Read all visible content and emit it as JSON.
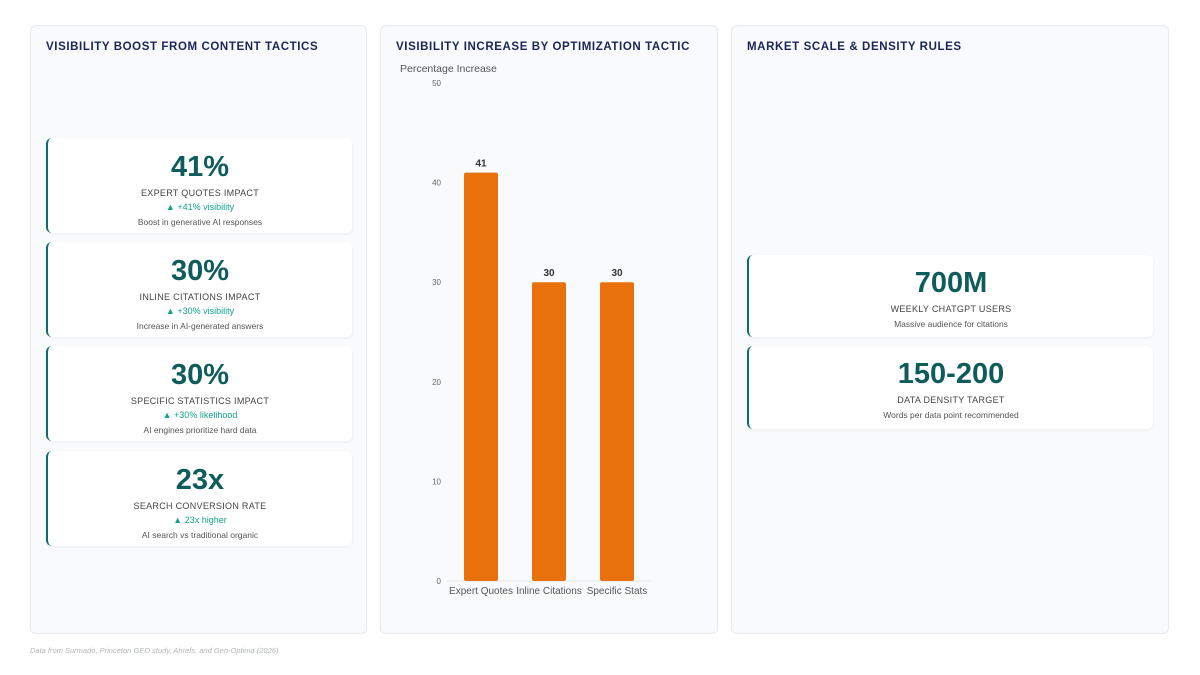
{
  "panels": {
    "left_title": "VISIBILITY BOOST FROM CONTENT TACTICS",
    "middle_title": "VISIBILITY INCREASE BY OPTIMIZATION TACTIC",
    "right_title": "MARKET SCALE & DENSITY RULES"
  },
  "left_cards": [
    {
      "value": "41%",
      "label": "EXPERT QUOTES IMPACT",
      "delta": "▲ +41% visibility",
      "desc": "Boost in generative AI responses"
    },
    {
      "value": "30%",
      "label": "INLINE CITATIONS IMPACT",
      "delta": "▲ +30% visibility",
      "desc": "Increase in AI-generated answers"
    },
    {
      "value": "30%",
      "label": "SPECIFIC STATISTICS IMPACT",
      "delta": "▲ +30% likelihood",
      "desc": "AI engines prioritize hard data"
    },
    {
      "value": "23x",
      "label": "SEARCH CONVERSION RATE",
      "delta": "▲ 23x higher",
      "desc": "AI search vs traditional organic"
    }
  ],
  "right_cards": [
    {
      "value": "700M",
      "label": "WEEKLY CHATGPT USERS",
      "desc": "Massive audience for citations"
    },
    {
      "value": "150-200",
      "label": "DATA DENSITY TARGET",
      "desc": "Words per data point recommended"
    }
  ],
  "chart_data": {
    "type": "bar",
    "categories": [
      "Expert Quotes",
      "Inline Citations",
      "Specific Stats"
    ],
    "values": [
      41,
      30,
      30
    ],
    "ylabel": "Percentage Increase",
    "ylim": [
      0,
      50
    ],
    "yticks": [
      "0",
      "10",
      "20",
      "30",
      "40",
      "50"
    ],
    "data_labels": [
      "41",
      "30",
      "30"
    ],
    "bar_color": "#e8710c",
    "grid": false
  },
  "footer": "Data from Surmado, Princeton GEO study, Ahrefs, and Gen-Optima (2026)"
}
